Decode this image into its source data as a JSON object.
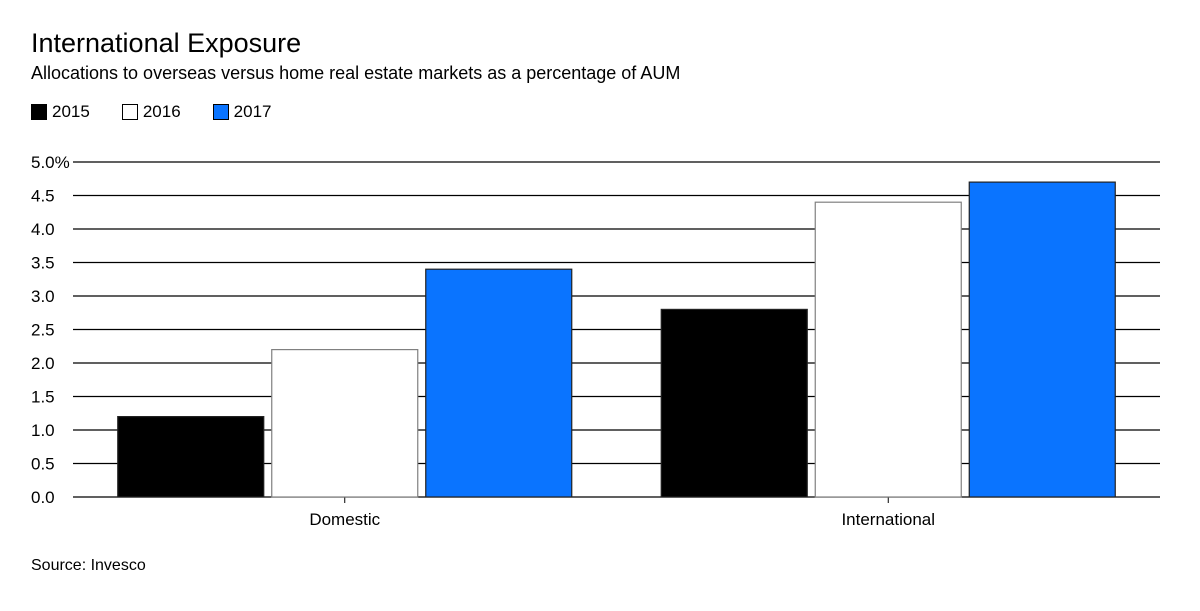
{
  "title": "International Exposure",
  "subtitle": "Allocations to overseas versus home real estate markets as a percentage of AUM",
  "source": "Source: Invesco",
  "chart_data": {
    "type": "bar",
    "title": "International Exposure",
    "subtitle": "Allocations to overseas versus home real estate markets as a percentage of AUM",
    "categories": [
      "Domestic",
      "International"
    ],
    "series": [
      {
        "name": "2015",
        "color": "#000000",
        "values": [
          1.2,
          2.8
        ]
      },
      {
        "name": "2016",
        "color": "#ffffff",
        "values": [
          2.2,
          4.4
        ]
      },
      {
        "name": "2017",
        "color": "#0a74ff",
        "values": [
          3.4,
          4.7
        ]
      }
    ],
    "ylim": [
      0,
      5
    ],
    "yticks": [
      "0.0",
      "0.5",
      "1.0",
      "1.5",
      "2.0",
      "2.5",
      "3.0",
      "3.5",
      "4.0",
      "4.5",
      "5.0%"
    ],
    "grid": true,
    "legend": "top-left",
    "xlabel": "",
    "ylabel": ""
  }
}
